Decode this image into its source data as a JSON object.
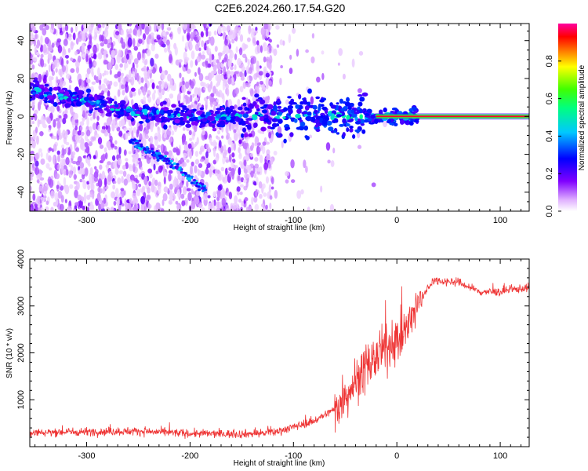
{
  "title": "C2E6.2024.260.17.54.G20",
  "chart_data": [
    {
      "type": "heatmap",
      "xlabel": "Height of straight line (km)",
      "ylabel": "Frequency (Hz)",
      "xlim": [
        -355,
        128
      ],
      "ylim": [
        -50,
        49
      ],
      "x_ticks": [
        -300,
        -200,
        -100,
        0,
        100
      ],
      "y_ticks": [
        -40,
        -20,
        0,
        20,
        40
      ],
      "colorbar": {
        "label": "Normalized spectral amplitude",
        "range": [
          0,
          1
        ],
        "ticks": [
          0.0,
          0.2,
          0.4,
          0.6,
          0.8
        ],
        "tick_labels": [
          "0.0",
          "0.2",
          "0.4",
          "0.6",
          "0.8"
        ]
      },
      "ridges": [
        {
          "points": [
            [
              -355,
              14
            ],
            [
              -300,
              8
            ],
            [
              -250,
              2
            ],
            [
              -200,
              0
            ],
            [
              -150,
              0
            ],
            [
              -100,
              1
            ],
            [
              -50,
              0
            ],
            [
              0,
              0
            ],
            [
              128,
              0
            ]
          ]
        },
        {
          "points": [
            [
              -260,
              -12
            ],
            [
              -220,
              -24
            ],
            [
              -185,
              -39
            ]
          ]
        }
      ],
      "bright_segment": {
        "x": [
          -20,
          128
        ],
        "y": 0,
        "amplitude": 0.95
      }
    },
    {
      "type": "line",
      "xlabel": "Height of straight line (km)",
      "ylabel": "SNR (10 * v/v)",
      "xlim": [
        -355,
        128
      ],
      "ylim": [
        0,
        4000
      ],
      "x_ticks": [
        -300,
        -200,
        -100,
        0,
        100
      ],
      "y_ticks": [
        1000,
        2000,
        3000,
        4000
      ],
      "color": "#ee3333",
      "series_points": [
        {
          "x": -355,
          "y": 300
        },
        {
          "x": -300,
          "y": 320
        },
        {
          "x": -250,
          "y": 330
        },
        {
          "x": -200,
          "y": 280
        },
        {
          "x": -150,
          "y": 270
        },
        {
          "x": -120,
          "y": 300
        },
        {
          "x": -100,
          "y": 420
        },
        {
          "x": -80,
          "y": 550
        },
        {
          "x": -60,
          "y": 800
        },
        {
          "x": -40,
          "y": 1400
        },
        {
          "x": -20,
          "y": 1900
        },
        {
          "x": 0,
          "y": 2300
        },
        {
          "x": 10,
          "y": 2500
        },
        {
          "x": 20,
          "y": 3000
        },
        {
          "x": 35,
          "y": 3550
        },
        {
          "x": 60,
          "y": 3500
        },
        {
          "x": 80,
          "y": 3300
        },
        {
          "x": 100,
          "y": 3300
        },
        {
          "x": 128,
          "y": 3400
        }
      ]
    }
  ]
}
